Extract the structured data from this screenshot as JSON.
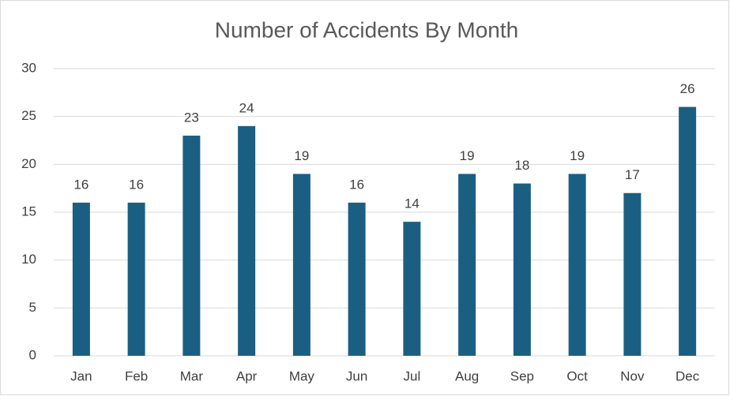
{
  "chart_data": {
    "type": "bar",
    "title": "Number of Accidents By Month",
    "categories": [
      "Jan",
      "Feb",
      "Mar",
      "Apr",
      "May",
      "Jun",
      "Jul",
      "Aug",
      "Sep",
      "Oct",
      "Nov",
      "Dec"
    ],
    "values": [
      16,
      16,
      23,
      24,
      19,
      16,
      14,
      19,
      18,
      19,
      17,
      26
    ],
    "color": "#1a5f82",
    "ylim": [
      0,
      30
    ],
    "yticks": [
      0,
      5,
      10,
      15,
      20,
      25,
      30
    ],
    "grid": true
  }
}
